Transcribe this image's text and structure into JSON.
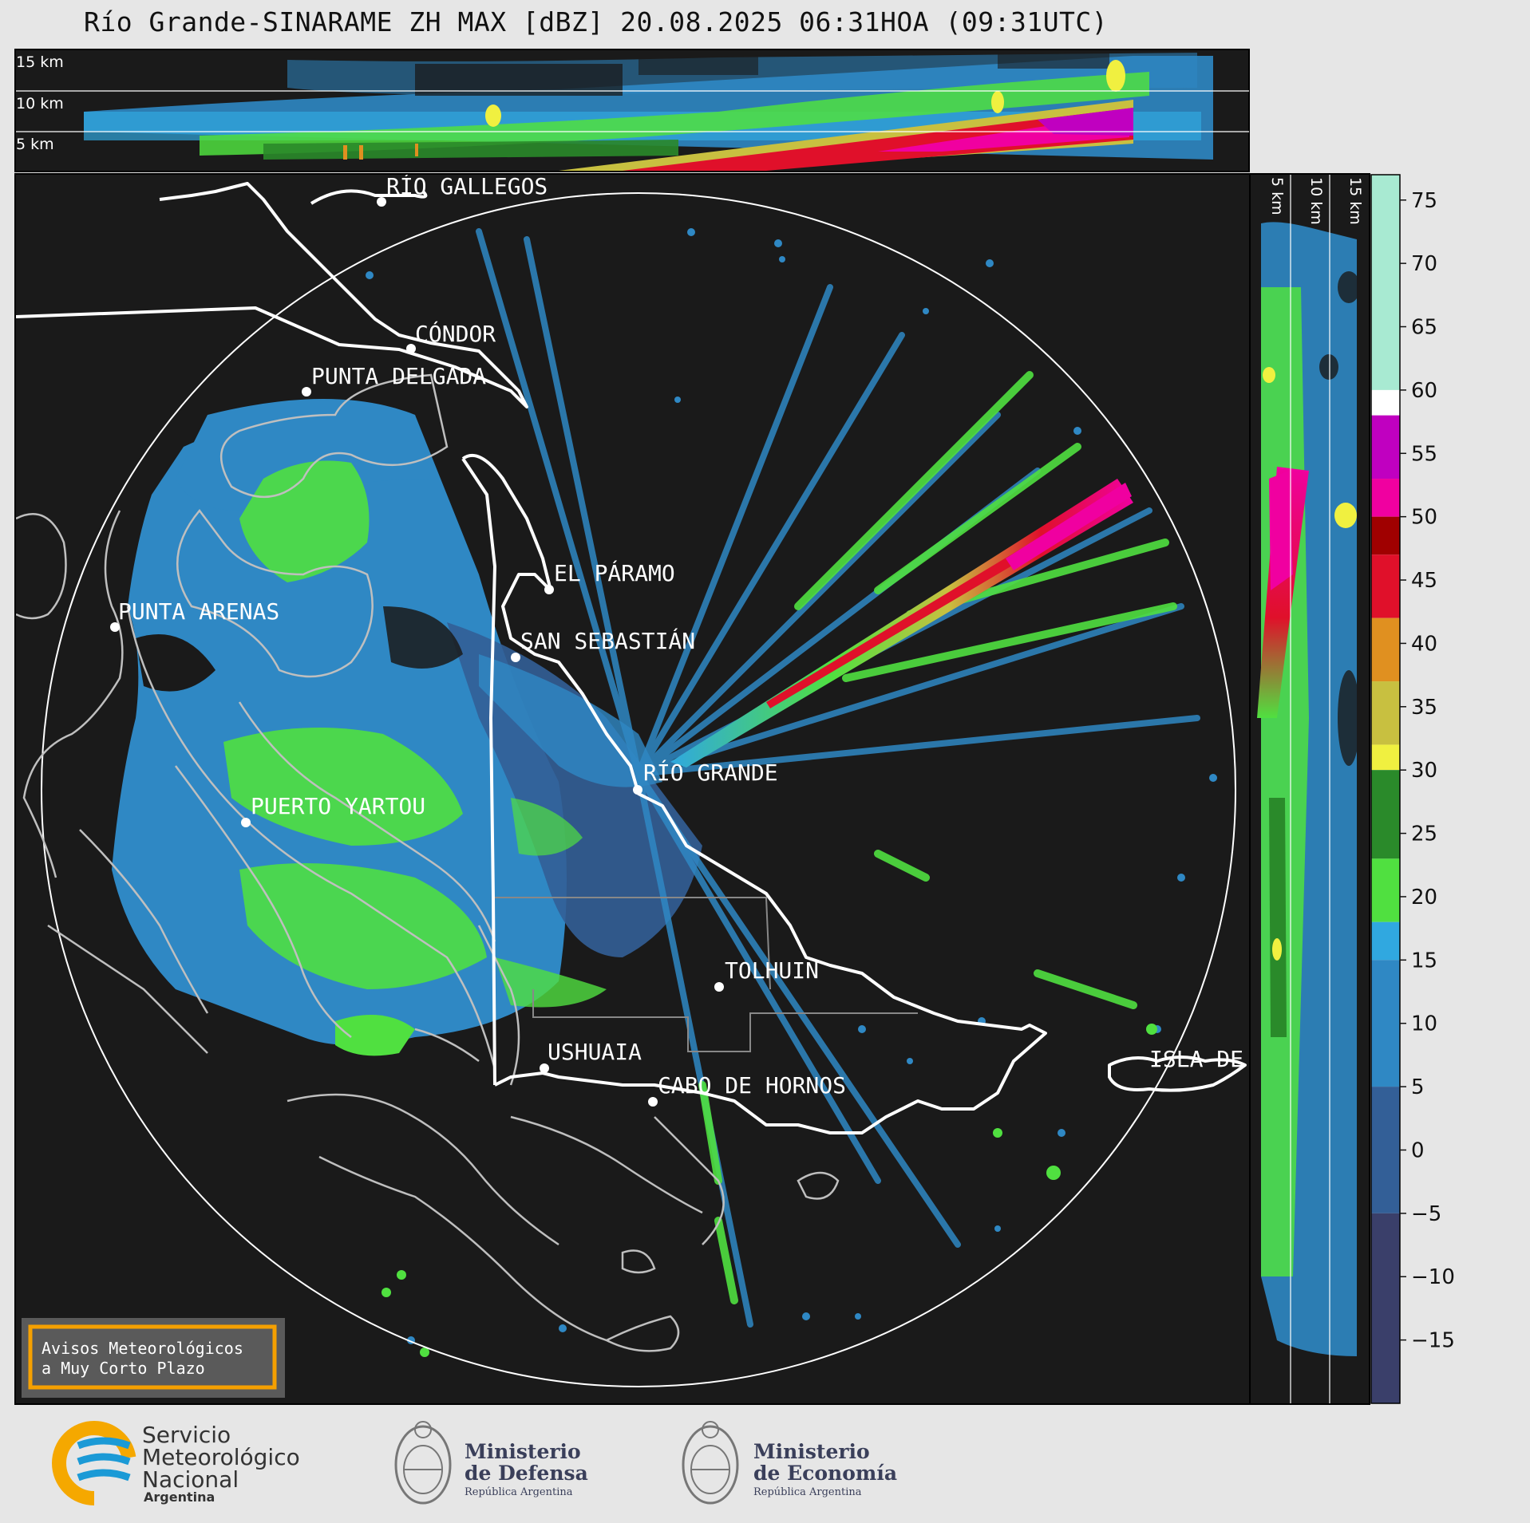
{
  "header": {
    "title": "Río Grande-SINARAME ZH MAX [dBZ] 20.08.2025 06:31HOA (09:31UTC)"
  },
  "top_panel": {
    "height_labels": [
      "15 km",
      "10 km",
      "5 km"
    ]
  },
  "side_panel": {
    "height_labels": [
      "5 km",
      "10 km",
      "15 km"
    ]
  },
  "map": {
    "place_labels": [
      {
        "name": "RÍO GALLEGOS"
      },
      {
        "name": "CÓNDOR"
      },
      {
        "name": "PUNTA DELGADA"
      },
      {
        "name": "EL PÁRAMO"
      },
      {
        "name": "PUNTA ARENAS"
      },
      {
        "name": "SAN SEBASTIÁN"
      },
      {
        "name": "RÍO GRANDE"
      },
      {
        "name": "PUERTO YARTOU"
      },
      {
        "name": "TOLHUIN"
      },
      {
        "name": "USHUAIA"
      },
      {
        "name": "CABO DE HORNOS"
      },
      {
        "name": "ISLA DE LOS ESTADOS"
      }
    ]
  },
  "warning_box": {
    "line1": "Avisos Meteorológicos",
    "line2": "a Muy Corto Plazo"
  },
  "colorbar": {
    "unit": "dBZ",
    "ticks": [
      75,
      70,
      65,
      60,
      55,
      50,
      45,
      40,
      35,
      30,
      25,
      20,
      15,
      10,
      5,
      0,
      -5,
      -10,
      -15
    ],
    "tick_labels": [
      "75",
      "70",
      "65",
      "60",
      "55",
      "50",
      "45",
      "40",
      "35",
      "30",
      "25",
      "20",
      "15",
      "10",
      "5",
      "0",
      "−5",
      "−10",
      "−15"
    ],
    "range": [
      -20,
      77
    ],
    "stops": [
      {
        "from": 60,
        "to": 77,
        "color": "#a8ead2"
      },
      {
        "from": 58,
        "to": 60,
        "color": "#ffffff"
      },
      {
        "from": 53,
        "to": 58,
        "color": "#c000c0"
      },
      {
        "from": 50,
        "to": 53,
        "color": "#f000a0"
      },
      {
        "from": 47,
        "to": 50,
        "color": "#a00000"
      },
      {
        "from": 42,
        "to": 47,
        "color": "#e0102a"
      },
      {
        "from": 37,
        "to": 42,
        "color": "#e09020"
      },
      {
        "from": 32,
        "to": 37,
        "color": "#c8c040"
      },
      {
        "from": 30,
        "to": 32,
        "color": "#f0f040"
      },
      {
        "from": 23,
        "to": 30,
        "color": "#2a8a2a"
      },
      {
        "from": 18,
        "to": 23,
        "color": "#50e040"
      },
      {
        "from": 15,
        "to": 18,
        "color": "#30a8e0"
      },
      {
        "from": 5,
        "to": 15,
        "color": "#2f88c4"
      },
      {
        "from": -5,
        "to": 5,
        "color": "#335f97"
      },
      {
        "from": -20,
        "to": -5,
        "color": "#3a3f6a"
      }
    ]
  },
  "logos": {
    "smn_line1": "Servicio",
    "smn_line2": "Meteorológico",
    "smn_line3": "Nacional",
    "smn_line4": "Argentina",
    "defensa_line1": "Ministerio",
    "defensa_line2": "de Defensa",
    "defensa_line3": "República Argentina",
    "economia_line1": "Ministerio",
    "economia_line2": "de Economía",
    "economia_line3": "República Argentina"
  },
  "colors": {
    "panel_bg": "#1a1a1a",
    "page_bg": "#e6e6e6",
    "smn_blue": "#1b9ad6",
    "smn_orange": "#f5a800",
    "warning_border": "#f5a000"
  }
}
